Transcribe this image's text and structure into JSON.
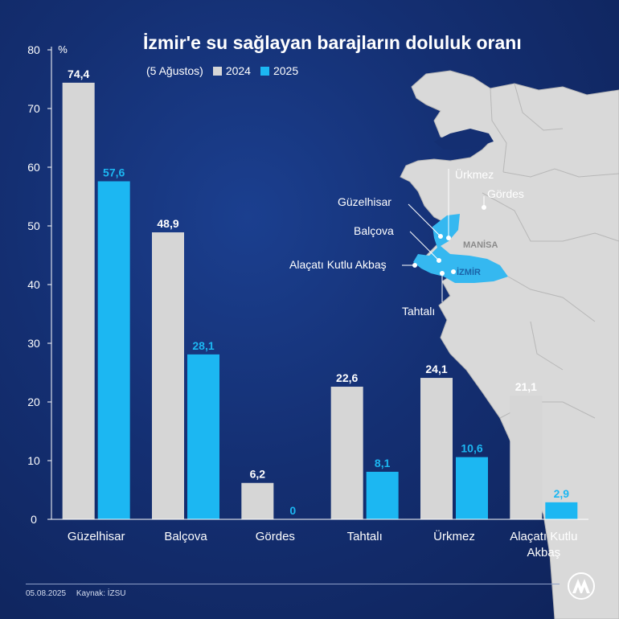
{
  "title": "İzmir'e su sağlayan barajların doluluk oranı",
  "subtitle_date": "(5 Ağustos)",
  "colors": {
    "s2024": "#d6d6d6",
    "s2025": "#1cb7f2",
    "map_land": "#d9d9d9",
    "map_highlight": "#35b8f0"
  },
  "chart_data": {
    "type": "bar",
    "unit_label": "%",
    "categories": [
      "Güzelhisar",
      "Balçova",
      "Gördes",
      "Tahtalı",
      "Ürkmez",
      "Alaçatı Kutlu Akbaş"
    ],
    "category_lines": [
      [
        "Güzelhisar"
      ],
      [
        "Balçova"
      ],
      [
        "Gördes"
      ],
      [
        "Tahtalı"
      ],
      [
        "Ürkmez"
      ],
      [
        "Alaçatı Kutlu",
        "Akbaş"
      ]
    ],
    "series": [
      {
        "name": "2024",
        "values": [
          74.4,
          48.9,
          6.2,
          22.6,
          24.1,
          21.1
        ],
        "labels": [
          "74,4",
          "48,9",
          "6,2",
          "22,6",
          "24,1",
          "21,1"
        ]
      },
      {
        "name": "2025",
        "values": [
          57.6,
          28.1,
          0,
          8.1,
          10.6,
          2.9
        ],
        "labels": [
          "57,6",
          "28,1",
          "0",
          "8,1",
          "10,6",
          "2,9"
        ]
      }
    ],
    "ylim": [
      0,
      80
    ],
    "yticks": [
      0,
      10,
      20,
      30,
      40,
      50,
      60,
      70,
      80
    ],
    "grid": false,
    "legend": "top-left"
  },
  "map": {
    "labels": {
      "urkmez": "Ürkmez",
      "gordes": "Gördes",
      "guzelhisar": "Güzelhisar",
      "balcova": "Balçova",
      "manisa": "MANİSA",
      "alacati": "Alaçatı Kutlu Akbaş",
      "izmir": "İZMİR",
      "tahtali": "Tahtalı"
    }
  },
  "footer": {
    "date": "05.08.2025",
    "source": "Kaynak: İZSU"
  },
  "logo_text": "AA"
}
